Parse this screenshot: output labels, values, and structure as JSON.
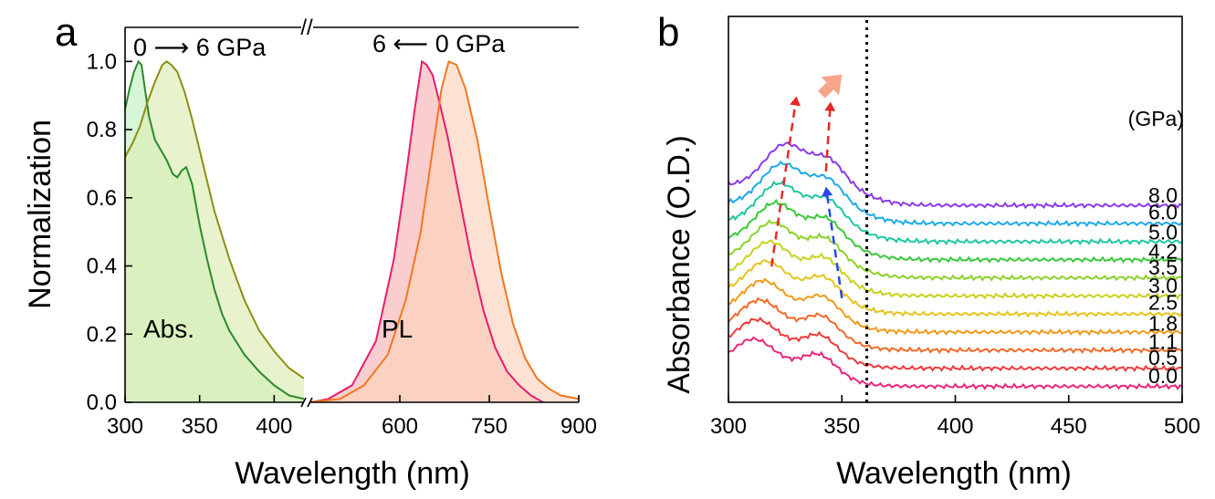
{
  "panel_a": {
    "letter": "a",
    "ylabel": "Normalization",
    "xlabel": "Wavelength (nm)",
    "annotation_abs_direction": "0 ⟶ 6 GPa",
    "annotation_pl_direction": "6 ⟵ 0 GPa",
    "label_abs": "Abs.",
    "label_pl": "PL",
    "axis_break_mark": "//"
  },
  "panel_b": {
    "letter": "b",
    "ylabel": "Absorbance (O.D.)",
    "xlabel": "Wavelength (nm)",
    "unit_header": "(GPa)"
  },
  "chart_data": [
    {
      "type": "area",
      "panel": "a",
      "title": "",
      "xlabel": "Wavelength (nm)",
      "ylabel": "Normalization",
      "broken_x_axis": true,
      "segments": [
        {
          "xlim": [
            300,
            420
          ],
          "xticks": [
            300,
            350,
            400
          ]
        },
        {
          "xlim": [
            450,
            900
          ],
          "xticks": [
            600,
            750,
            900
          ]
        }
      ],
      "ylim": [
        0,
        1.1
      ],
      "yticks": [
        "0.0",
        "0.2",
        "0.4",
        "0.6",
        "0.8",
        "1.0"
      ],
      "series": [
        {
          "name": "Abs. 0 GPa",
          "color": "#2a8a2a",
          "fill": "#c2f0c2",
          "x": [
            300,
            303,
            306,
            309,
            311,
            313,
            316,
            320,
            324,
            328,
            332,
            335,
            338,
            341,
            345,
            350,
            355,
            360,
            365,
            370,
            380,
            390,
            400,
            410,
            420
          ],
          "y": [
            0.86,
            0.92,
            0.97,
            1.0,
            0.99,
            0.93,
            0.84,
            0.77,
            0.74,
            0.71,
            0.67,
            0.66,
            0.68,
            0.69,
            0.64,
            0.52,
            0.42,
            0.33,
            0.26,
            0.21,
            0.14,
            0.09,
            0.05,
            0.02,
            0.01
          ]
        },
        {
          "name": "Abs. 6 GPa",
          "color": "#8e8e12",
          "fill": "#dcedb4",
          "x": [
            300,
            305,
            310,
            315,
            320,
            325,
            328,
            331,
            335,
            340,
            345,
            350,
            355,
            360,
            370,
            380,
            390,
            400,
            410,
            420
          ],
          "y": [
            0.72,
            0.76,
            0.81,
            0.88,
            0.94,
            0.99,
            1.0,
            0.99,
            0.97,
            0.91,
            0.83,
            0.74,
            0.65,
            0.56,
            0.42,
            0.3,
            0.21,
            0.15,
            0.1,
            0.07
          ]
        },
        {
          "name": "PL 0 GPa",
          "color": "#e61e6e",
          "fill": "#f8b4b4",
          "x": [
            450,
            480,
            520,
            560,
            590,
            610,
            625,
            637,
            645,
            655,
            665,
            680,
            700,
            720,
            740,
            760,
            780,
            800,
            820,
            840
          ],
          "y": [
            0.0,
            0.01,
            0.05,
            0.18,
            0.42,
            0.66,
            0.86,
            1.0,
            0.99,
            0.96,
            0.89,
            0.78,
            0.6,
            0.42,
            0.27,
            0.16,
            0.09,
            0.05,
            0.02,
            0.0
          ]
        },
        {
          "name": "PL 6 GPa",
          "color": "#f07820",
          "fill": "#fcd2bc",
          "x": [
            450,
            500,
            540,
            580,
            610,
            635,
            655,
            670,
            682,
            695,
            710,
            730,
            750,
            770,
            790,
            810,
            830,
            850,
            870,
            900
          ],
          "y": [
            0.0,
            0.01,
            0.05,
            0.14,
            0.3,
            0.5,
            0.74,
            0.92,
            1.0,
            0.99,
            0.92,
            0.77,
            0.57,
            0.38,
            0.23,
            0.13,
            0.07,
            0.04,
            0.02,
            0.01
          ]
        }
      ]
    },
    {
      "type": "line",
      "panel": "b",
      "title": "",
      "xlabel": "Wavelength (nm)",
      "ylabel": "Absorbance (O.D.)",
      "xlim": [
        300,
        500
      ],
      "xticks": [
        300,
        350,
        400,
        450,
        500
      ],
      "y_tick_labels": "none",
      "reference_line": {
        "x": 361,
        "style": "dotted",
        "color": "#000000"
      },
      "series": [
        {
          "name": "0.0",
          "color": "#e6287a",
          "offset": 0.0
        },
        {
          "name": "0.5",
          "color": "#ee3c3c",
          "offset": 0.2
        },
        {
          "name": "1.1",
          "color": "#f26a28",
          "offset": 0.4
        },
        {
          "name": "1.8",
          "color": "#f09a1a",
          "offset": 0.6
        },
        {
          "name": "2.5",
          "color": "#e6c41e",
          "offset": 0.8
        },
        {
          "name": "3.0",
          "color": "#c8d21e",
          "offset": 1.0
        },
        {
          "name": "3.5",
          "color": "#8ed22a",
          "offset": 1.2
        },
        {
          "name": "4.2",
          "color": "#3cc83c",
          "offset": 1.4
        },
        {
          "name": "5.0",
          "color": "#1ec8a0",
          "offset": 1.6
        },
        {
          "name": "6.0",
          "color": "#1eaae6",
          "offset": 1.8
        },
        {
          "name": "8.0",
          "color": "#8a3ce6",
          "offset": 2.0
        }
      ],
      "arrows": [
        {
          "color": "#e62828",
          "style": "dashed",
          "from": [
            319,
            0.9
          ],
          "to": [
            330,
            2.78
          ]
        },
        {
          "color": "#e62828",
          "style": "dashed",
          "from": [
            343,
            1.95
          ],
          "to": [
            345,
            2.72
          ]
        },
        {
          "color": "#2846e6",
          "style": "dashed",
          "from": [
            350,
            0.55
          ],
          "to": [
            343,
            1.78
          ]
        },
        {
          "color": "#f7a48a",
          "style": "solid-thick",
          "from": [
            341,
            2.8
          ],
          "to": [
            350,
            3.02
          ]
        }
      ]
    }
  ]
}
